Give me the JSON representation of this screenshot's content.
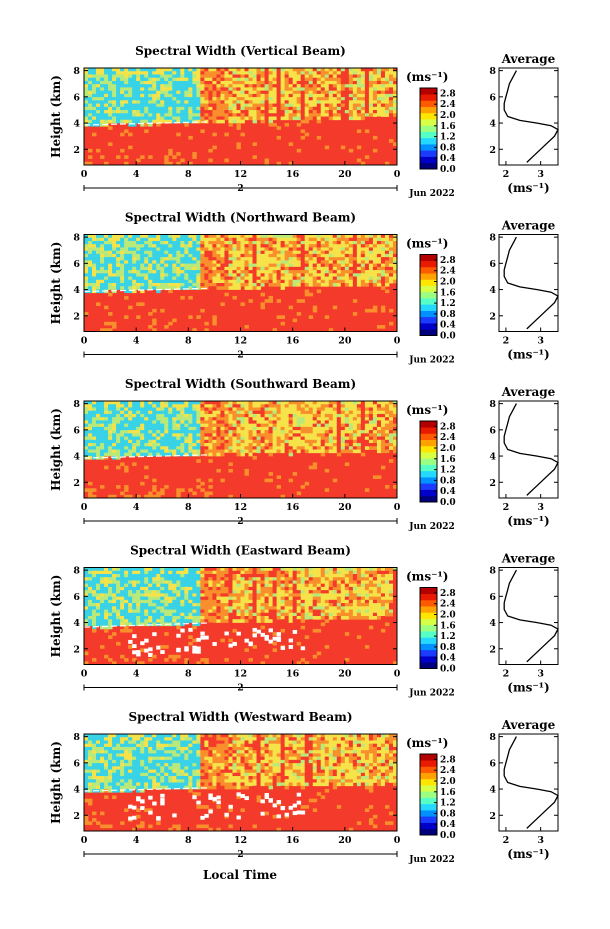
{
  "figure": {
    "xlabel": "Local Time",
    "ylabel": "Height (km)",
    "colorbar_label": "(ms⁻¹)",
    "date_label": "Jun 2022",
    "day_label": "2",
    "avg_title": "Average",
    "avg_xlabel": "(ms⁻¹)",
    "colors": {
      "field_red": "#f43a2a",
      "field_orange": "#f98f2c",
      "field_yellow": "#f6e34a",
      "field_lightgreen": "#b9e97a",
      "field_cyan": "#39d2e6",
      "gap": "#ffffff"
    }
  },
  "chart_data": [
    {
      "type": "heatmap",
      "title": "Spectral Width (Vertical Beam)",
      "x_ticks": [
        "0",
        "4",
        "8",
        "12",
        "16",
        "20",
        "0"
      ],
      "xlim": [
        0,
        24
      ],
      "y_ticks": [
        "2",
        "4",
        "6",
        "8"
      ],
      "ylim": [
        0.8,
        8.2
      ],
      "boundary_height_km": {
        "start": 3.8,
        "end": 4.4
      },
      "colorbar": {
        "ticks": [
          "0.0",
          "0.4",
          "0.8",
          "1.2",
          "1.6",
          "2.0",
          "2.4",
          "2.8"
        ],
        "range": [
          0.0,
          3.0
        ]
      },
      "average_profile": {
        "x_ticks": [
          "2",
          "3"
        ],
        "xlim": [
          1.8,
          3.5
        ],
        "y_ticks": [
          "2",
          "4",
          "6",
          "8"
        ],
        "ylim": [
          0.8,
          8.2
        ],
        "height": [
          1.0,
          1.5,
          2.0,
          2.5,
          3.0,
          3.5,
          3.8,
          4.0,
          4.2,
          4.5,
          5.0,
          5.5,
          6.0,
          6.5,
          7.0,
          7.5,
          8.0
        ],
        "value": [
          2.6,
          2.8,
          3.0,
          3.2,
          3.4,
          3.5,
          3.3,
          2.9,
          2.4,
          2.05,
          1.95,
          1.95,
          2.0,
          2.05,
          2.1,
          2.2,
          2.3
        ]
      }
    },
    {
      "type": "heatmap",
      "title": "Spectral Width (Northward Beam)",
      "x_ticks": [
        "0",
        "4",
        "8",
        "12",
        "16",
        "20",
        "0"
      ],
      "xlim": [
        0,
        24
      ],
      "y_ticks": [
        "2",
        "4",
        "6",
        "8"
      ],
      "ylim": [
        0.8,
        8.2
      ],
      "boundary_height_km": {
        "start": 3.8,
        "end": 4.4
      },
      "colorbar": {
        "ticks": [
          "0.0",
          "0.4",
          "0.8",
          "1.2",
          "1.6",
          "2.0",
          "2.4",
          "2.8"
        ],
        "range": [
          0.0,
          3.0
        ]
      },
      "average_profile": {
        "x_ticks": [
          "2",
          "3"
        ],
        "xlim": [
          1.8,
          3.5
        ],
        "y_ticks": [
          "2",
          "4",
          "6",
          "8"
        ],
        "ylim": [
          0.8,
          8.2
        ],
        "height": [
          1.0,
          1.5,
          2.0,
          2.5,
          3.0,
          3.5,
          3.8,
          4.0,
          4.2,
          4.5,
          5.0,
          5.5,
          6.0,
          6.5,
          7.0,
          7.5,
          8.0
        ],
        "value": [
          2.6,
          2.8,
          3.0,
          3.2,
          3.4,
          3.5,
          3.3,
          2.9,
          2.4,
          2.05,
          1.95,
          1.95,
          2.0,
          2.05,
          2.1,
          2.2,
          2.3
        ]
      }
    },
    {
      "type": "heatmap",
      "title": "Spectral Width (Southward Beam)",
      "x_ticks": [
        "0",
        "4",
        "8",
        "12",
        "16",
        "20",
        "0"
      ],
      "xlim": [
        0,
        24
      ],
      "y_ticks": [
        "2",
        "4",
        "6",
        "8"
      ],
      "ylim": [
        0.8,
        8.2
      ],
      "boundary_height_km": {
        "start": 3.8,
        "end": 4.4
      },
      "colorbar": {
        "ticks": [
          "0.0",
          "0.4",
          "0.8",
          "1.2",
          "1.6",
          "2.0",
          "2.4",
          "2.8"
        ],
        "range": [
          0.0,
          3.0
        ]
      },
      "average_profile": {
        "x_ticks": [
          "2",
          "3"
        ],
        "xlim": [
          1.8,
          3.5
        ],
        "y_ticks": [
          "2",
          "4",
          "6",
          "8"
        ],
        "ylim": [
          0.8,
          8.2
        ],
        "height": [
          1.0,
          1.5,
          2.0,
          2.5,
          3.0,
          3.5,
          3.8,
          4.0,
          4.2,
          4.5,
          5.0,
          5.5,
          6.0,
          6.5,
          7.0,
          7.5,
          8.0
        ],
        "value": [
          2.6,
          2.8,
          3.0,
          3.2,
          3.4,
          3.5,
          3.3,
          2.9,
          2.4,
          2.05,
          1.95,
          1.95,
          2.0,
          2.05,
          2.1,
          2.2,
          2.3
        ]
      }
    },
    {
      "type": "heatmap",
      "title": "Spectral Width (Eastward Beam)",
      "x_ticks": [
        "0",
        "4",
        "8",
        "12",
        "16",
        "20",
        "0"
      ],
      "xlim": [
        0,
        24
      ],
      "y_ticks": [
        "2",
        "4",
        "6",
        "8"
      ],
      "ylim": [
        0.8,
        8.2
      ],
      "boundary_height_km": {
        "start": 3.6,
        "end": 4.4
      },
      "colorbar": {
        "ticks": [
          "0.0",
          "0.4",
          "0.8",
          "1.2",
          "1.6",
          "2.0",
          "2.4",
          "2.8"
        ],
        "range": [
          0.0,
          3.0
        ]
      },
      "average_profile": {
        "x_ticks": [
          "2",
          "3"
        ],
        "xlim": [
          1.8,
          3.5
        ],
        "y_ticks": [
          "2",
          "4",
          "6",
          "8"
        ],
        "ylim": [
          0.8,
          8.2
        ],
        "height": [
          1.0,
          1.5,
          2.0,
          2.5,
          3.0,
          3.5,
          3.8,
          4.0,
          4.2,
          4.5,
          5.0,
          5.5,
          6.0,
          6.5,
          7.0,
          7.5,
          8.0
        ],
        "value": [
          2.6,
          2.8,
          3.0,
          3.2,
          3.4,
          3.5,
          3.3,
          2.9,
          2.4,
          2.05,
          1.95,
          1.95,
          2.0,
          2.05,
          2.1,
          2.2,
          2.3
        ]
      }
    },
    {
      "type": "heatmap",
      "title": "Spectral Width (Westward Beam)",
      "x_ticks": [
        "0",
        "4",
        "8",
        "12",
        "16",
        "20",
        "0"
      ],
      "xlim": [
        0,
        24
      ],
      "y_ticks": [
        "2",
        "4",
        "6",
        "8"
      ],
      "ylim": [
        0.8,
        8.2
      ],
      "boundary_height_km": {
        "start": 3.8,
        "end": 4.4
      },
      "colorbar": {
        "ticks": [
          "0.0",
          "0.4",
          "0.8",
          "1.2",
          "1.6",
          "2.0",
          "2.4",
          "2.8"
        ],
        "range": [
          0.0,
          3.0
        ]
      },
      "average_profile": {
        "x_ticks": [
          "2",
          "3"
        ],
        "xlim": [
          1.8,
          3.5
        ],
        "y_ticks": [
          "2",
          "4",
          "6",
          "8"
        ],
        "ylim": [
          0.8,
          8.2
        ],
        "height": [
          1.0,
          1.5,
          2.0,
          2.5,
          3.0,
          3.5,
          3.8,
          4.0,
          4.2,
          4.5,
          5.0,
          5.5,
          6.0,
          6.5,
          7.0,
          7.5,
          8.0
        ],
        "value": [
          2.6,
          2.8,
          3.0,
          3.2,
          3.4,
          3.5,
          3.3,
          2.9,
          2.4,
          2.05,
          1.95,
          1.95,
          2.0,
          2.05,
          2.1,
          2.2,
          2.3
        ]
      }
    }
  ]
}
